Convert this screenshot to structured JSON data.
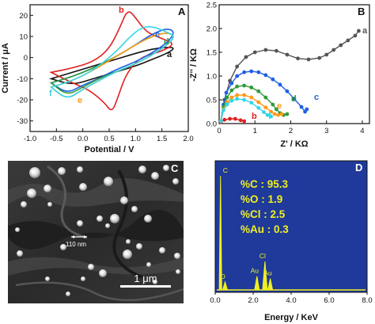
{
  "panels": {
    "A": {
      "letter": "A"
    },
    "B": {
      "letter": "B"
    },
    "C": {
      "letter": "C",
      "scale_label": "1 μm",
      "size_label": "110 nm"
    },
    "D": {
      "letter": "D"
    }
  },
  "chart_data": [
    {
      "id": "A",
      "type": "line",
      "title": "",
      "xlabel": "Potential / V",
      "ylabel": "Current / μA",
      "xlim": [
        -1.0,
        2.0
      ],
      "ylim": [
        -35,
        25
      ],
      "xticks": [
        "-1.0",
        "-0.5",
        "0.0",
        "0.5",
        "1.0",
        "1.5",
        "2.0"
      ],
      "yticks": [
        "-30",
        "-20",
        "-10",
        "0",
        "10",
        "20"
      ],
      "grid": false,
      "series": [
        {
          "name": "a",
          "color": "#111111",
          "x": [
            -0.6,
            -0.2,
            0.2,
            0.6,
            1.0,
            1.3,
            1.6,
            1.75,
            1.6,
            1.3,
            1.0,
            0.6,
            0.2,
            -0.2,
            -0.6
          ],
          "y": [
            -10,
            -7,
            -4,
            -1,
            2,
            4,
            5,
            4.5,
            2,
            -1,
            -4,
            -7,
            -10,
            -13,
            -10
          ]
        },
        {
          "name": "b",
          "color": "#e02020",
          "x": [
            -0.6,
            -0.2,
            0.2,
            0.5,
            0.7,
            0.85,
            1.0,
            1.2,
            1.5,
            1.75,
            1.5,
            1.2,
            1.0,
            0.8,
            0.65,
            0.55,
            0.4,
            0.1,
            -0.2,
            -0.6
          ],
          "y": [
            -7,
            -5,
            -2,
            4,
            14,
            23,
            19,
            12,
            9,
            6.5,
            3,
            1,
            -2,
            -9,
            -20,
            -26,
            -21,
            -15,
            -12,
            -7
          ]
        },
        {
          "name": "c",
          "color": "#1e5fe6",
          "x": [
            -0.6,
            -0.2,
            0.2,
            0.6,
            1.0,
            1.3,
            1.6,
            1.75,
            1.6,
            1.3,
            1.0,
            0.6,
            0.3,
            0.0,
            -0.3,
            -0.6
          ],
          "y": [
            -12,
            -9,
            -5,
            0,
            6,
            11,
            14,
            12,
            7,
            2,
            -2,
            -6,
            -10,
            -13,
            -17,
            -12
          ]
        },
        {
          "name": "d",
          "color": "#2e9a3a",
          "x": [
            -0.6,
            -0.2,
            0.2,
            0.6,
            1.0,
            1.3,
            1.6,
            1.75,
            1.6,
            1.3,
            1.0,
            0.6,
            0.3,
            0.0,
            -0.3,
            -0.6
          ],
          "y": [
            -12,
            -9,
            -5,
            0,
            6,
            10,
            12,
            10,
            6,
            1,
            -3,
            -7,
            -10,
            -14,
            -18,
            -12
          ]
        },
        {
          "name": "e",
          "color": "#ff9a1a",
          "x": [
            -0.6,
            -0.2,
            0.2,
            0.6,
            1.0,
            1.3,
            1.6,
            1.75,
            1.6,
            1.3,
            1.0,
            0.6,
            0.3,
            0.0,
            -0.3,
            -0.6
          ],
          "y": [
            -14,
            -11,
            -6,
            0,
            6,
            10,
            12,
            10,
            6,
            1,
            -3,
            -7,
            -11,
            -15,
            -20,
            -14
          ]
        },
        {
          "name": "f",
          "color": "#33d6e6",
          "x": [
            -0.6,
            -0.2,
            0.2,
            0.6,
            0.9,
            1.1,
            1.3,
            1.6,
            1.75,
            1.6,
            1.3,
            1.0,
            0.6,
            0.3,
            0.0,
            -0.3,
            -0.6
          ],
          "y": [
            -14,
            -11,
            -6,
            2,
            10,
            14,
            15,
            12,
            10,
            6,
            1,
            -3,
            -7,
            -11,
            -15,
            -20,
            -14
          ]
        }
      ]
    },
    {
      "id": "B",
      "type": "scatter",
      "title": "",
      "xlabel": "Z' / KΩ",
      "ylabel": "-Z'' / KΩ",
      "xlim": [
        0,
        4.2
      ],
      "ylim": [
        0,
        2.5
      ],
      "xticks": [
        "0",
        "1",
        "2",
        "3",
        "4"
      ],
      "yticks": [
        "0.0",
        "0.5",
        "1.0",
        "1.5",
        "2.0",
        "2.5"
      ],
      "grid": false,
      "series": [
        {
          "name": "a",
          "color": "#555555",
          "x": [
            0.05,
            0.15,
            0.3,
            0.5,
            0.75,
            1.0,
            1.3,
            1.6,
            1.9,
            2.2,
            2.5,
            2.8,
            3.0,
            3.2,
            3.4,
            3.6,
            3.8,
            3.9
          ],
          "y": [
            0.05,
            0.5,
            0.9,
            1.2,
            1.4,
            1.5,
            1.55,
            1.53,
            1.45,
            1.37,
            1.35,
            1.38,
            1.45,
            1.55,
            1.65,
            1.75,
            1.85,
            1.95
          ]
        },
        {
          "name": "b",
          "color": "#e02020",
          "x": [
            0.05,
            0.15,
            0.3,
            0.45,
            0.6,
            0.7
          ],
          "y": [
            0.03,
            0.08,
            0.1,
            0.1,
            0.07,
            0.05
          ]
        },
        {
          "name": "c",
          "color": "#1e5fe6",
          "x": [
            0.05,
            0.12,
            0.2,
            0.35,
            0.5,
            0.7,
            0.9,
            1.1,
            1.3,
            1.5,
            1.7,
            1.9,
            2.1,
            2.3,
            2.4,
            2.45
          ],
          "y": [
            0.05,
            0.4,
            0.65,
            0.85,
            1.0,
            1.08,
            1.1,
            1.08,
            1.02,
            0.93,
            0.82,
            0.68,
            0.52,
            0.35,
            0.25,
            0.3
          ]
        },
        {
          "name": "d",
          "color": "#2e9a3a",
          "x": [
            0.05,
            0.12,
            0.22,
            0.35,
            0.5,
            0.7,
            0.9,
            1.1,
            1.3,
            1.5,
            1.6,
            1.7,
            1.8,
            1.9
          ],
          "y": [
            0.05,
            0.35,
            0.55,
            0.7,
            0.78,
            0.8,
            0.76,
            0.68,
            0.55,
            0.4,
            0.3,
            0.22,
            0.18,
            0.2
          ]
        },
        {
          "name": "e",
          "color": "#ff9a1a",
          "x": [
            0.05,
            0.12,
            0.22,
            0.35,
            0.5,
            0.7,
            0.9,
            1.1,
            1.3,
            1.45,
            1.55,
            1.65,
            1.75
          ],
          "y": [
            0.05,
            0.3,
            0.45,
            0.55,
            0.6,
            0.6,
            0.55,
            0.45,
            0.34,
            0.25,
            0.2,
            0.18,
            0.2
          ]
        },
        {
          "name": "f",
          "color": "#33d6e6",
          "x": [
            0.05,
            0.12,
            0.22,
            0.35,
            0.5,
            0.7,
            0.9,
            1.1,
            1.25,
            1.35,
            1.45
          ],
          "y": [
            0.05,
            0.28,
            0.4,
            0.48,
            0.52,
            0.5,
            0.44,
            0.33,
            0.24,
            0.18,
            0.15
          ]
        }
      ]
    },
    {
      "id": "D",
      "type": "line",
      "title": "",
      "xlabel": "Energy / KeV",
      "ylabel": "",
      "xlim": [
        0,
        8
      ],
      "xticks": [
        "0.0",
        "2.0",
        "4.0",
        "6.0",
        "8.0"
      ],
      "background": "#1f3a9a",
      "line_color": "#f0f020",
      "peaks": [
        {
          "label": "C",
          "x": 0.28,
          "height": 1.0
        },
        {
          "label": "O",
          "x": 0.52,
          "height": 0.07
        },
        {
          "label": "Au",
          "x": 2.2,
          "height": 0.12
        },
        {
          "label": "Cl",
          "x": 2.62,
          "height": 0.25
        },
        {
          "label": "Au",
          "x": 2.9,
          "height": 0.1
        }
      ],
      "annotations": [
        "%C : 95.3",
        "%O : 1.9",
        "%Cl : 2.5",
        "%Au : 0.3"
      ]
    }
  ]
}
